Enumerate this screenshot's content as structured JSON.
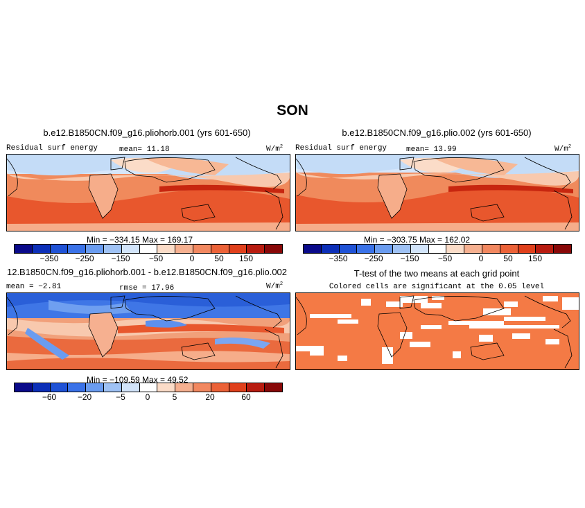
{
  "title": "SON",
  "panels": [
    {
      "heading": "b.e12.B1850CN.f09_g16.pliohorb.001 (yrs 601-650)",
      "left_label": "Residual surf energy",
      "center_label": "mean=  11.18",
      "units": "W/m",
      "units_sup": "2",
      "minmax": "Min = −334.15 Max = 169.17",
      "colorbar_ticks": [
        "−350",
        "−250",
        "−150",
        "−50",
        "0",
        "50",
        "150"
      ]
    },
    {
      "heading": "b.e12.B1850CN.f09_g16.plio.002 (yrs 601-650)",
      "left_label": "Residual surf energy",
      "center_label": "mean=  13.99",
      "units": "W/m",
      "units_sup": "2",
      "minmax": "Min = −303.75 Max = 162.02",
      "colorbar_ticks": [
        "−350",
        "−250",
        "−150",
        "−50",
        "0",
        "50",
        "150"
      ]
    },
    {
      "heading": "12.B1850CN.f09_g16.pliohorb.001 - b.e12.B1850CN.f09_g16.plio.002",
      "left_label": "mean =  −2.81",
      "center_label": "rmse =  17.96",
      "units": "W/m",
      "units_sup": "2",
      "minmax": "Min = −109.59 Max =  49.52",
      "colorbar_ticks": [
        "−60",
        "−20",
        "−5",
        "0",
        "5",
        "20",
        "60"
      ]
    },
    {
      "heading": "T-test of the two means at each grid point",
      "center_label": "Colored cells are significant at the 0.05 level"
    }
  ],
  "colors": {
    "colorbar": [
      "#0a0a8a",
      "#0c2fb8",
      "#1f52d6",
      "#3a72e8",
      "#6a9cf0",
      "#9fc2f5",
      "#d2e4fa",
      "#ffffff",
      "#fbdcc8",
      "#f6b090",
      "#f28860",
      "#ec6238",
      "#e0401c",
      "#b81c10",
      "#880808"
    ],
    "ttest_fill": "#f47a45",
    "land_outline": "#000000"
  }
}
